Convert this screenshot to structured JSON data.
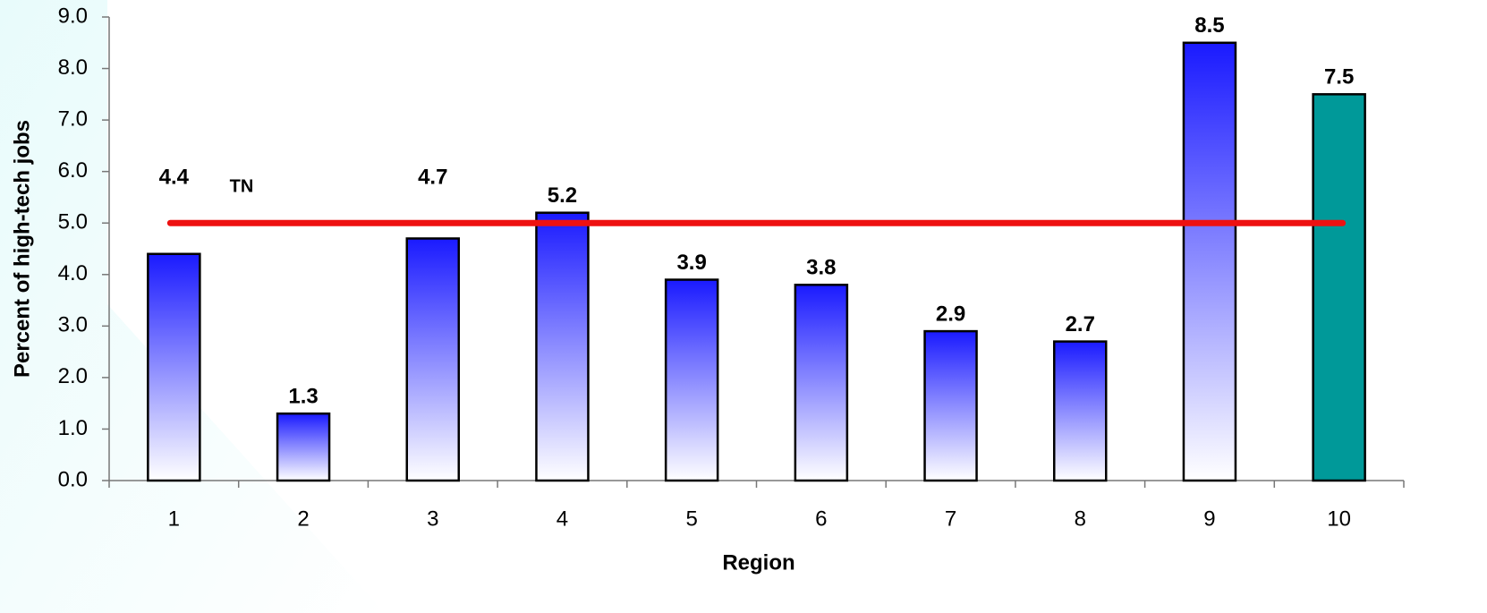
{
  "chart_data": {
    "type": "bar",
    "x_label": "Region",
    "y_label": "Percent of high-tech jobs",
    "categories": [
      "1",
      "2",
      "3",
      "4",
      "5",
      "6",
      "7",
      "8",
      "9",
      "10"
    ],
    "values": [
      4.4,
      1.3,
      4.7,
      5.2,
      3.9,
      3.8,
      2.9,
      2.7,
      8.5,
      7.5
    ],
    "colors": [
      "#1a1aff",
      "#1a1aff",
      "#1a1aff",
      "#1a1aff",
      "#1a1aff",
      "#1a1aff",
      "#1a1aff",
      "#1a1aff",
      "#1a1aff",
      "#009999"
    ],
    "reference_line": {
      "label": "TN",
      "value": 5.0,
      "color": "#ee1111"
    },
    "ylim": [
      0,
      9
    ],
    "yticks": [
      {
        "value": 0,
        "label": "0.0"
      },
      {
        "value": 1,
        "label": "1.0"
      },
      {
        "value": 2,
        "label": "2.0"
      },
      {
        "value": 3,
        "label": "3.0"
      },
      {
        "value": 4,
        "label": "4.0"
      },
      {
        "value": 5,
        "label": "5.0"
      },
      {
        "value": 6,
        "label": "6.0"
      },
      {
        "value": 7,
        "label": "7.0"
      },
      {
        "value": 8,
        "label": "8.0"
      },
      {
        "value": 9,
        "label": "9.0"
      }
    ],
    "grid": false
  }
}
